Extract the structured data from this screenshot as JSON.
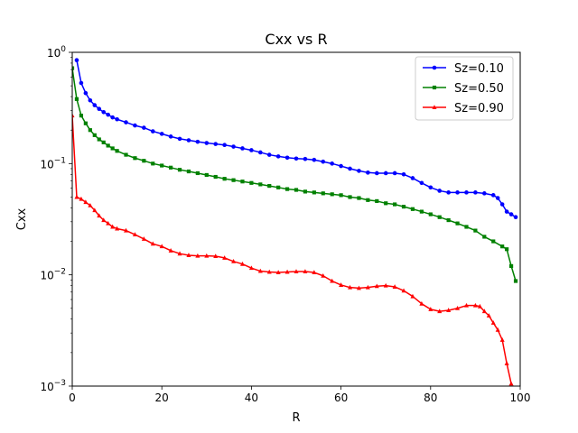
{
  "chart_data": {
    "type": "line",
    "title": "Cxx vs R",
    "xlabel": "R",
    "ylabel": "Cxx",
    "xlim": [
      0,
      100
    ],
    "ylim": [
      0.001,
      1
    ],
    "yscale": "log",
    "grid": false,
    "legend_position": "top-right",
    "x_ticks": [
      "0",
      "20",
      "40",
      "60",
      "80",
      "100"
    ],
    "y_ticks": [
      {
        "value": 0.001,
        "base": "10",
        "exp": "−3"
      },
      {
        "value": 0.01,
        "base": "10",
        "exp": "−2"
      },
      {
        "value": 0.1,
        "base": "10",
        "exp": "−1"
      },
      {
        "value": 1,
        "base": "10",
        "exp": "0"
      }
    ],
    "series": [
      {
        "name": "Sz=0.10",
        "color": "#0000ff",
        "marker": "circle",
        "points": [
          [
            1,
            0.85
          ],
          [
            2,
            0.53
          ],
          [
            3,
            0.43
          ],
          [
            4,
            0.37
          ],
          [
            5,
            0.335
          ],
          [
            6,
            0.31
          ],
          [
            7,
            0.29
          ],
          [
            8,
            0.275
          ],
          [
            9,
            0.26
          ],
          [
            10,
            0.25
          ],
          [
            12,
            0.235
          ],
          [
            14,
            0.22
          ],
          [
            16,
            0.21
          ],
          [
            18,
            0.195
          ],
          [
            20,
            0.185
          ],
          [
            22,
            0.175
          ],
          [
            24,
            0.167
          ],
          [
            26,
            0.162
          ],
          [
            28,
            0.157
          ],
          [
            30,
            0.153
          ],
          [
            32,
            0.15
          ],
          [
            34,
            0.147
          ],
          [
            36,
            0.142
          ],
          [
            38,
            0.137
          ],
          [
            40,
            0.132
          ],
          [
            42,
            0.126
          ],
          [
            44,
            0.12
          ],
          [
            46,
            0.116
          ],
          [
            48,
            0.113
          ],
          [
            50,
            0.111
          ],
          [
            52,
            0.11
          ],
          [
            54,
            0.108
          ],
          [
            56,
            0.104
          ],
          [
            58,
            0.1
          ],
          [
            60,
            0.095
          ],
          [
            62,
            0.09
          ],
          [
            64,
            0.086
          ],
          [
            66,
            0.083
          ],
          [
            68,
            0.082
          ],
          [
            70,
            0.082
          ],
          [
            72,
            0.082
          ],
          [
            74,
            0.08
          ],
          [
            76,
            0.074
          ],
          [
            78,
            0.067
          ],
          [
            80,
            0.061
          ],
          [
            82,
            0.057
          ],
          [
            84,
            0.055
          ],
          [
            86,
            0.055
          ],
          [
            88,
            0.055
          ],
          [
            90,
            0.055
          ],
          [
            92,
            0.054
          ],
          [
            94,
            0.052
          ],
          [
            95,
            0.049
          ],
          [
            96,
            0.043
          ],
          [
            97,
            0.037
          ],
          [
            98,
            0.035
          ],
          [
            99,
            0.033
          ]
        ]
      },
      {
        "name": "Sz=0.50",
        "color": "#008000",
        "marker": "square",
        "points": [
          [
            0,
            0.72
          ],
          [
            1,
            0.38
          ],
          [
            2,
            0.27
          ],
          [
            3,
            0.23
          ],
          [
            4,
            0.2
          ],
          [
            5,
            0.18
          ],
          [
            6,
            0.165
          ],
          [
            7,
            0.155
          ],
          [
            8,
            0.145
          ],
          [
            9,
            0.137
          ],
          [
            10,
            0.13
          ],
          [
            12,
            0.12
          ],
          [
            14,
            0.112
          ],
          [
            16,
            0.106
          ],
          [
            18,
            0.1
          ],
          [
            20,
            0.096
          ],
          [
            22,
            0.092
          ],
          [
            24,
            0.088
          ],
          [
            26,
            0.085
          ],
          [
            28,
            0.082
          ],
          [
            30,
            0.079
          ],
          [
            32,
            0.076
          ],
          [
            34,
            0.073
          ],
          [
            36,
            0.071
          ],
          [
            38,
            0.069
          ],
          [
            40,
            0.067
          ],
          [
            42,
            0.065
          ],
          [
            44,
            0.063
          ],
          [
            46,
            0.061
          ],
          [
            48,
            0.059
          ],
          [
            50,
            0.058
          ],
          [
            52,
            0.056
          ],
          [
            54,
            0.055
          ],
          [
            56,
            0.054
          ],
          [
            58,
            0.053
          ],
          [
            60,
            0.052
          ],
          [
            62,
            0.05
          ],
          [
            64,
            0.049
          ],
          [
            66,
            0.047
          ],
          [
            68,
            0.046
          ],
          [
            70,
            0.044
          ],
          [
            72,
            0.043
          ],
          [
            74,
            0.041
          ],
          [
            76,
            0.039
          ],
          [
            78,
            0.037
          ],
          [
            80,
            0.035
          ],
          [
            82,
            0.033
          ],
          [
            84,
            0.031
          ],
          [
            86,
            0.029
          ],
          [
            88,
            0.027
          ],
          [
            90,
            0.025
          ],
          [
            92,
            0.022
          ],
          [
            94,
            0.02
          ],
          [
            96,
            0.018
          ],
          [
            97,
            0.017
          ],
          [
            98,
            0.012
          ],
          [
            99,
            0.0088
          ]
        ]
      },
      {
        "name": "Sz=0.90",
        "color": "#ff0000",
        "marker": "triangle",
        "points": [
          [
            0,
            0.27
          ],
          [
            1,
            0.05
          ],
          [
            2,
            0.048
          ],
          [
            3,
            0.045
          ],
          [
            4,
            0.042
          ],
          [
            5,
            0.038
          ],
          [
            6,
            0.034
          ],
          [
            7,
            0.031
          ],
          [
            8,
            0.029
          ],
          [
            9,
            0.027
          ],
          [
            10,
            0.026
          ],
          [
            12,
            0.025
          ],
          [
            14,
            0.023
          ],
          [
            16,
            0.021
          ],
          [
            18,
            0.019
          ],
          [
            20,
            0.018
          ],
          [
            22,
            0.0165
          ],
          [
            24,
            0.0155
          ],
          [
            26,
            0.015
          ],
          [
            28,
            0.0148
          ],
          [
            30,
            0.0148
          ],
          [
            32,
            0.0147
          ],
          [
            34,
            0.0142
          ],
          [
            36,
            0.0132
          ],
          [
            38,
            0.0125
          ],
          [
            40,
            0.0115
          ],
          [
            42,
            0.0108
          ],
          [
            44,
            0.0106
          ],
          [
            46,
            0.0105
          ],
          [
            48,
            0.0106
          ],
          [
            50,
            0.0107
          ],
          [
            52,
            0.0107
          ],
          [
            54,
            0.0105
          ],
          [
            56,
            0.0098
          ],
          [
            58,
            0.0088
          ],
          [
            60,
            0.0081
          ],
          [
            62,
            0.0077
          ],
          [
            64,
            0.0076
          ],
          [
            66,
            0.0077
          ],
          [
            68,
            0.0079
          ],
          [
            70,
            0.008
          ],
          [
            72,
            0.0078
          ],
          [
            74,
            0.0072
          ],
          [
            76,
            0.0064
          ],
          [
            78,
            0.0055
          ],
          [
            80,
            0.0049
          ],
          [
            82,
            0.0047
          ],
          [
            84,
            0.0048
          ],
          [
            86,
            0.005
          ],
          [
            88,
            0.0053
          ],
          [
            90,
            0.0053
          ],
          [
            91,
            0.0052
          ],
          [
            92,
            0.0047
          ],
          [
            93,
            0.0043
          ],
          [
            94,
            0.0037
          ],
          [
            95,
            0.0032
          ],
          [
            96,
            0.0026
          ],
          [
            97,
            0.0016
          ],
          [
            98,
            0.00105
          ]
        ]
      }
    ]
  }
}
